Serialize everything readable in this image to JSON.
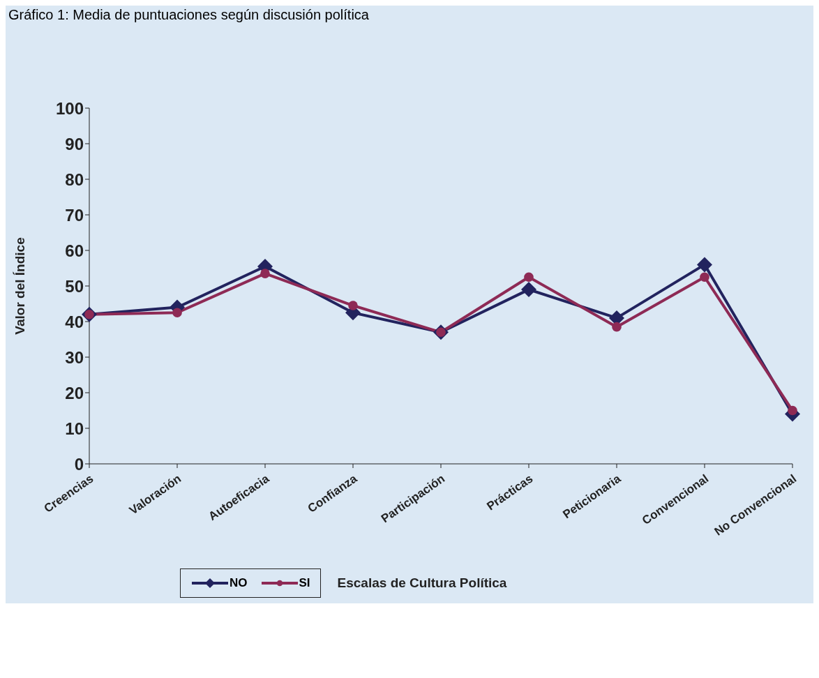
{
  "chart_data": {
    "type": "line",
    "title": "Gráfico 1: Media de puntuaciones según discusión política",
    "xlabel": "Escalas de Cultura Política",
    "ylabel": "Valor del Índice",
    "categories": [
      "Creencias",
      "Valoración",
      "Autoeficacia",
      "Confianza",
      "Participación",
      "Prácticas",
      "Peticionaria",
      "Convencional",
      "No Convencional"
    ],
    "series": [
      {
        "name": "NO",
        "color": "#22235e",
        "marker": "diamond",
        "values": [
          42,
          44,
          55.5,
          42.5,
          37,
          49,
          41,
          56,
          14
        ]
      },
      {
        "name": "SI",
        "color": "#8e2a55",
        "marker": "circle",
        "values": [
          42,
          42.5,
          53.5,
          44.5,
          37,
          52.5,
          38.5,
          52.5,
          15
        ]
      }
    ],
    "ylim": [
      0,
      100
    ],
    "yticks": [
      0,
      10,
      20,
      30,
      40,
      50,
      60,
      70,
      80,
      90,
      100
    ],
    "grid": false,
    "legend": "bottom left"
  }
}
